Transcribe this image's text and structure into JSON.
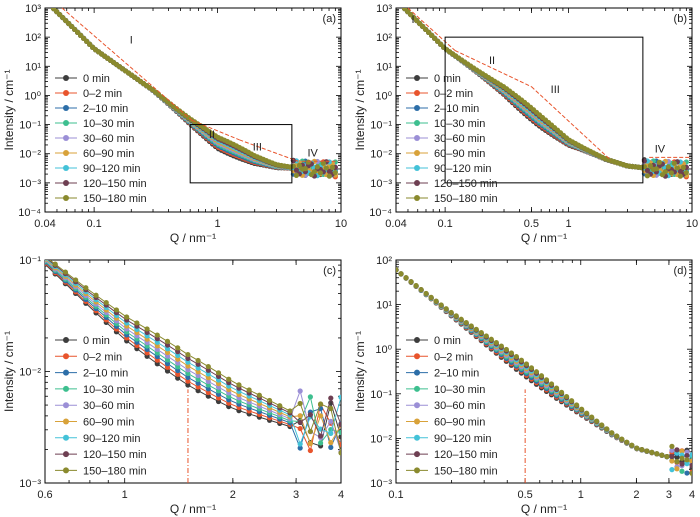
{
  "figure": {
    "series_names": [
      "0 min",
      "0–2 min",
      "2–10 min",
      "10–30 min",
      "30–60 min",
      "60–90 min",
      "90–120 min",
      "120–150 min",
      "150–180 min"
    ],
    "series_colors": [
      "#3d3d3d",
      "#e8542c",
      "#2c6ea8",
      "#3dbf8f",
      "#9b8fd6",
      "#d8a23a",
      "#43c2d8",
      "#6e3f52",
      "#8a8a2e"
    ],
    "guide_color": "#e8542c"
  },
  "chart_data": [
    {
      "type": "scatter",
      "panel_label": "(a)",
      "xlabel": "Q / nm⁻¹",
      "ylabel": "Intensity / cm⁻¹",
      "x_scale": "log",
      "y_scale": "log",
      "xlim": [
        0.04,
        10
      ],
      "ylim": [
        0.0001,
        1000
      ],
      "x_ticks": [
        0.04,
        0.1,
        1,
        10
      ],
      "x_tick_labels": [
        "0.04",
        "0.1",
        "1",
        "10"
      ],
      "y_ticks": [
        0.0001,
        0.001,
        0.01,
        0.1,
        1,
        10,
        100,
        1000
      ],
      "y_tick_labels": [
        "10⁻⁴",
        "10⁻³",
        "10⁻²",
        "10⁻¹",
        "10⁰",
        "10¹",
        "10²",
        "10³"
      ],
      "legend": "left",
      "region_labels": [
        {
          "text": "I",
          "x": 0.2,
          "y": 60
        },
        {
          "text": "II",
          "x": 0.9,
          "y": 0.035
        },
        {
          "text": "III",
          "x": 2.1,
          "y": 0.013
        },
        {
          "text": "IV",
          "x": 5.9,
          "y": 0.008
        }
      ],
      "guides": [
        {
          "points": [
            [
              0.055,
              1000
            ],
            [
              0.62,
              0.14
            ]
          ]
        },
        {
          "points": [
            [
              0.62,
              0.14
            ],
            [
              1.5,
              0.03
            ]
          ]
        },
        {
          "points": [
            [
              1.5,
              0.03
            ],
            [
              4.5,
              0.0055
            ]
          ]
        },
        {
          "points": [
            [
              4.8,
              0.0055
            ],
            [
              9.5,
              0.0055
            ]
          ]
        }
      ],
      "zoom_box": {
        "x": [
          0.6,
          4
        ],
        "y": [
          0.001,
          0.1
        ]
      },
      "curve": {
        "x_start": 0.047,
        "x_end": 9.0,
        "anchors": [
          [
            0.047,
            950
          ],
          [
            0.1,
            40
          ],
          [
            0.3,
            1.5
          ],
          [
            0.6,
            0.13
          ],
          [
            1.0,
            0.025
          ],
          [
            2.0,
            0.0065
          ],
          [
            3.0,
            0.0038
          ],
          [
            5.0,
            0.003
          ],
          [
            9.0,
            0.0028
          ]
        ],
        "spread": [
          0.6,
          1.5
        ],
        "spread_center": 1.2,
        "noise_from": 4.0,
        "count": 95
      }
    },
    {
      "type": "scatter",
      "panel_label": "(b)",
      "xlabel": "Q / nm⁻¹",
      "ylabel": "Intensity / cm⁻¹",
      "x_scale": "log",
      "y_scale": "log",
      "xlim": [
        0.04,
        10
      ],
      "ylim": [
        0.0001,
        1000
      ],
      "x_ticks": [
        0.04,
        0.1,
        0.5,
        1,
        10
      ],
      "x_tick_labels": [
        "0.04",
        "0.1",
        "0.5",
        "1",
        "10"
      ],
      "y_ticks": [
        0.0001,
        0.001,
        0.01,
        0.1,
        1,
        10,
        100,
        1000
      ],
      "y_tick_labels": [
        "10⁻⁴",
        "10⁻³",
        "10⁻²",
        "10⁻¹",
        "10⁰",
        "10¹",
        "10²",
        "10³"
      ],
      "legend": "left",
      "region_labels": [
        {
          "text": "I",
          "x": 0.055,
          "y": 300
        },
        {
          "text": "II",
          "x": 0.24,
          "y": 12
        },
        {
          "text": "III",
          "x": 0.78,
          "y": 1.2
        },
        {
          "text": "IV",
          "x": 5.5,
          "y": 0.011
        }
      ],
      "guides": [
        {
          "points": [
            [
              0.05,
              1000
            ],
            [
              0.12,
              35
            ]
          ]
        },
        {
          "points": [
            [
              0.12,
              35
            ],
            [
              0.5,
              2
            ]
          ]
        },
        {
          "points": [
            [
              0.5,
              2
            ],
            [
              2.2,
              0.006
            ]
          ]
        },
        {
          "points": [
            [
              4.5,
              0.0075
            ],
            [
              9.5,
              0.0075
            ]
          ]
        }
      ],
      "zoom_box": {
        "x": [
          0.1,
          4
        ],
        "y": [
          0.001,
          100
        ]
      },
      "curve": {
        "x_start": 0.047,
        "x_end": 9.0,
        "anchors": [
          [
            0.047,
            950
          ],
          [
            0.1,
            40
          ],
          [
            0.3,
            1.5
          ],
          [
            0.6,
            0.13
          ],
          [
            1.0,
            0.025
          ],
          [
            2.0,
            0.0065
          ],
          [
            3.0,
            0.0038
          ],
          [
            5.0,
            0.003
          ],
          [
            9.0,
            0.0028
          ]
        ],
        "spread": [
          0.6,
          1.5
        ],
        "spread_center": 0.5,
        "noise_from": 4.0,
        "count": 95
      }
    },
    {
      "type": "line",
      "panel_label": "(c)",
      "xlabel": "Q / nm⁻¹",
      "ylabel": "Intensity / cm⁻¹",
      "x_scale": "log",
      "y_scale": "log",
      "xlim": [
        0.6,
        4
      ],
      "ylim": [
        0.001,
        0.1
      ],
      "x_ticks": [
        0.6,
        1,
        2,
        3,
        4
      ],
      "x_tick_labels": [
        "0.6",
        "1",
        "2",
        "3",
        "4"
      ],
      "y_ticks": [
        0.001,
        0.01,
        0.1
      ],
      "y_tick_labels": [
        "10⁻³",
        "10⁻²",
        "10⁻¹"
      ],
      "legend": "left",
      "marker_x": 1.5,
      "curve": {
        "x_start": 0.6,
        "x_end": 4.0,
        "anchors": [
          [
            0.6,
            0.1
          ],
          [
            0.8,
            0.045
          ],
          [
            1.0,
            0.025
          ],
          [
            1.5,
            0.0105
          ],
          [
            2.0,
            0.0062
          ],
          [
            3.0,
            0.0036
          ],
          [
            4.0,
            0.003
          ]
        ],
        "spread": [
          0.72,
          1.35
        ],
        "spread_center": 1.5,
        "noise_from": 3.0,
        "count": 30
      }
    },
    {
      "type": "scatter",
      "panel_label": "(d)",
      "xlabel": "Q / nm⁻¹",
      "ylabel": "Intensity / cm⁻¹",
      "x_scale": "log",
      "y_scale": "log",
      "xlim": [
        0.1,
        4
      ],
      "ylim": [
        0.001,
        100
      ],
      "x_ticks": [
        0.1,
        0.5,
        1,
        2,
        3,
        4
      ],
      "x_tick_labels": [
        "0.1",
        "0.5",
        "1",
        "2",
        "3",
        "4"
      ],
      "y_ticks": [
        0.001,
        0.01,
        0.1,
        1,
        10,
        100
      ],
      "y_tick_labels": [
        "10⁻³",
        "10⁻²",
        "10⁻¹",
        "10⁰",
        "10¹",
        "10²"
      ],
      "legend": "left",
      "marker_x": 0.5,
      "curve": {
        "x_start": 0.1,
        "x_end": 4.0,
        "anchors": [
          [
            0.1,
            60
          ],
          [
            0.2,
            6
          ],
          [
            0.5,
            0.35
          ],
          [
            1.0,
            0.04
          ],
          [
            1.5,
            0.012
          ],
          [
            2.0,
            0.006
          ],
          [
            3.0,
            0.0038
          ],
          [
            4.0,
            0.003
          ]
        ],
        "spread": [
          0.72,
          1.4
        ],
        "spread_center": 0.5,
        "noise_from": 3.0,
        "count": 60
      }
    }
  ]
}
